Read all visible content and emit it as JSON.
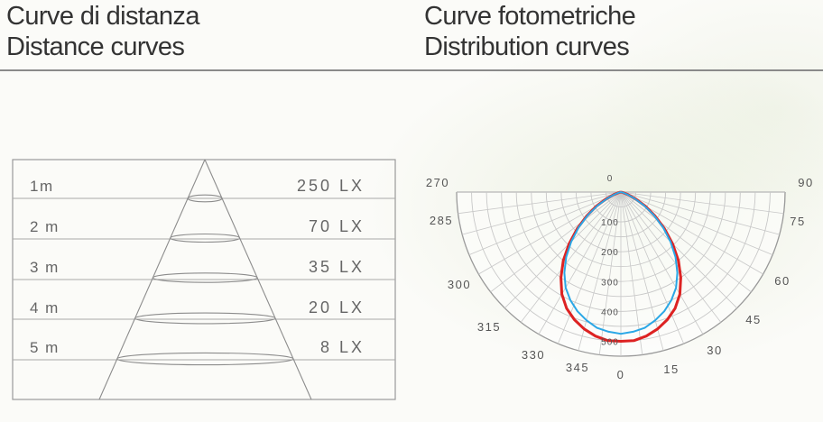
{
  "header": {
    "left_title_it": "Curve di distanza",
    "left_title_en": "Distance curves",
    "right_title_it": "Curve fotometriche",
    "right_title_en": "Distribution curves"
  },
  "distance_table": {
    "rows": [
      {
        "distance": "1m",
        "illuminance": "250 LX"
      },
      {
        "distance": "2 m",
        "illuminance": "70 LX"
      },
      {
        "distance": "3 m",
        "illuminance": "35 LX"
      },
      {
        "distance": "4 m",
        "illuminance": "20 LX"
      },
      {
        "distance": "5 m",
        "illuminance": "8 LX"
      }
    ]
  },
  "polar": {
    "angle_labels": [
      {
        "deg": 270,
        "text": "270"
      },
      {
        "deg": 285,
        "text": "285"
      },
      {
        "deg": 300,
        "text": "300"
      },
      {
        "deg": 315,
        "text": "315"
      },
      {
        "deg": 330,
        "text": "330"
      },
      {
        "deg": 345,
        "text": "345"
      },
      {
        "deg": 0,
        "text": "0"
      },
      {
        "deg": 15,
        "text": "15"
      },
      {
        "deg": 30,
        "text": "30"
      },
      {
        "deg": 45,
        "text": "45"
      },
      {
        "deg": 60,
        "text": "60"
      },
      {
        "deg": 75,
        "text": "75"
      },
      {
        "deg": 90,
        "text": "90"
      }
    ],
    "radial_max": 550,
    "radial_labels": [
      "0",
      "100",
      "200",
      "300",
      "400",
      "500"
    ],
    "colors": {
      "red": "#dd2222",
      "blue": "#2aa7e6",
      "grid": "#c8c8c8",
      "frame": "#9a9a9a"
    }
  },
  "chart_data": {
    "type": "polar",
    "radial_ticks": [
      0,
      100,
      200,
      300,
      400,
      500
    ],
    "series": [
      {
        "color": "#dd2222",
        "points": [
          [
            0,
            500
          ],
          [
            5,
            500
          ],
          [
            10,
            490
          ],
          [
            15,
            475
          ],
          [
            20,
            455
          ],
          [
            25,
            430
          ],
          [
            30,
            395
          ],
          [
            35,
            350
          ],
          [
            40,
            300
          ],
          [
            45,
            245
          ],
          [
            50,
            190
          ],
          [
            55,
            140
          ],
          [
            60,
            95
          ],
          [
            65,
            55
          ],
          [
            70,
            25
          ],
          [
            75,
            8
          ],
          [
            80,
            0
          ]
        ]
      },
      {
        "color": "#2aa7e6",
        "points": [
          [
            0,
            475
          ],
          [
            5,
            470
          ],
          [
            10,
            462
          ],
          [
            15,
            445
          ],
          [
            20,
            425
          ],
          [
            25,
            400
          ],
          [
            30,
            370
          ],
          [
            35,
            330
          ],
          [
            40,
            285
          ],
          [
            45,
            235
          ],
          [
            50,
            185
          ],
          [
            55,
            135
          ],
          [
            60,
            90
          ],
          [
            65,
            50
          ],
          [
            70,
            22
          ],
          [
            75,
            7
          ],
          [
            80,
            0
          ]
        ]
      }
    ]
  }
}
